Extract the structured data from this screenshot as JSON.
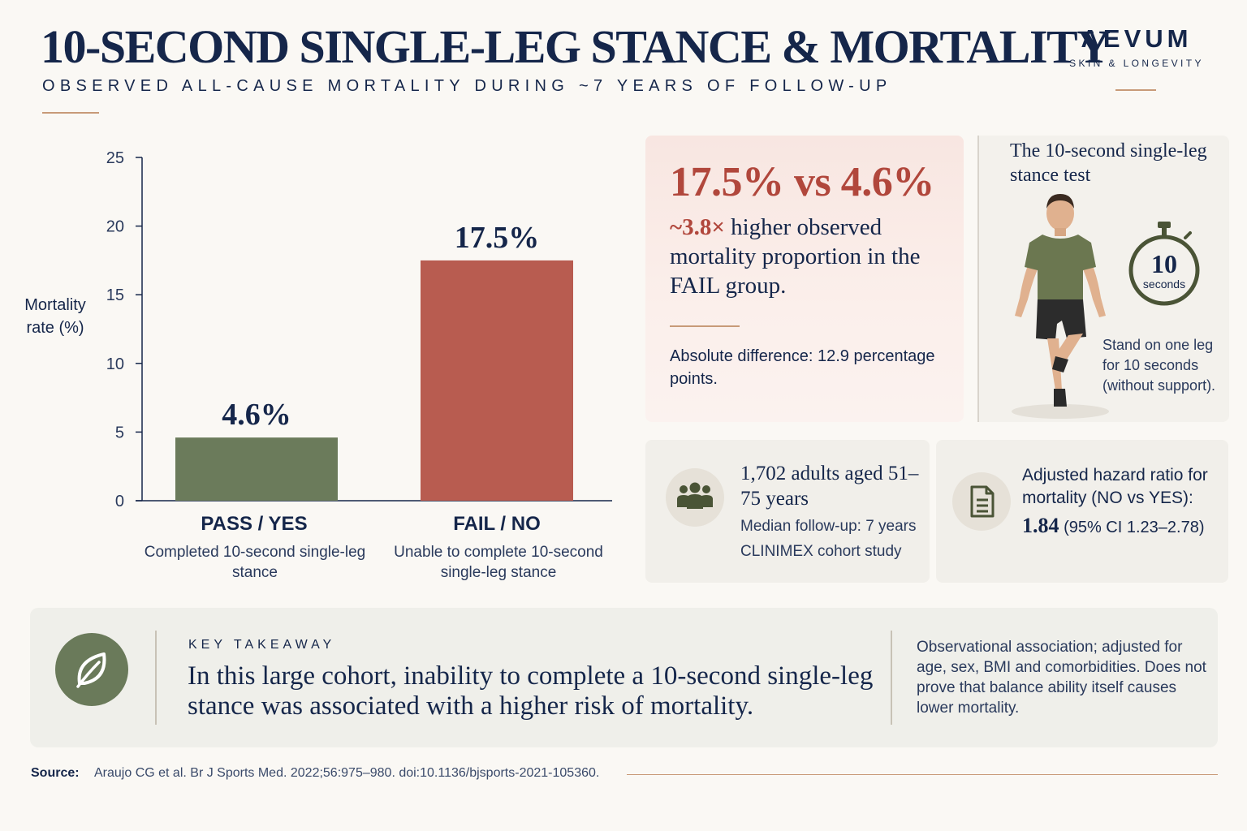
{
  "header": {
    "title": "10-SECOND SINGLE-LEG STANCE & MORTALITY",
    "subtitle": "OBSERVED ALL-CAUSE MORTALITY DURING ~7 YEARS OF FOLLOW-UP"
  },
  "brand": {
    "name": "AEVUM",
    "tagline": "SKIN & LONGEVITY"
  },
  "chart_data": {
    "type": "bar",
    "categories": [
      "PASS / YES",
      "FAIL / NO"
    ],
    "category_descriptions": [
      "Completed 10-second single-leg stance",
      "Unable to complete 10-second single-leg stance"
    ],
    "values": [
      4.6,
      17.5
    ],
    "data_labels": [
      "4.6%",
      "17.5%"
    ],
    "ylabel": "Mortality rate (%)",
    "ylim": [
      0,
      25
    ],
    "yticks": [
      0,
      5,
      10,
      15,
      20,
      25
    ],
    "grid": false,
    "colors": [
      "#6b7b5b",
      "#b85c50"
    ]
  },
  "stat_card": {
    "headline": "17.5% vs 4.6%",
    "ratio": "~3.8×",
    "body": " higher observed mortality proportion in the FAIL group.",
    "absolute_diff": "Absolute difference: 12.9 percentage points."
  },
  "test_card": {
    "title": "The 10-second single-leg stance test",
    "timer_value": "10",
    "timer_unit": "seconds",
    "description": "Stand on one leg for 10 seconds (without support)."
  },
  "cohort_card": {
    "icon": "people-group-icon",
    "main": "1,702 adults aged 51–75 years",
    "follow_up": "Median follow-up: 7 years",
    "study": "CLINIMEX cohort study"
  },
  "hr_card": {
    "icon": "document-icon",
    "label": "Adjusted hazard ratio for mortality (NO vs YES):",
    "value": "1.84",
    "ci": "(95% CI 1.23–2.78)"
  },
  "takeaway": {
    "icon": "leaf-icon",
    "label": "KEY TAKEAWAY",
    "text": "In this large cohort, inability to complete a 10-second single-leg stance was associated with a higher risk of mortality.",
    "note": "Observational association; adjusted for age, sex, BMI and comorbidities. Does not prove that balance ability itself causes lower mortality."
  },
  "source": {
    "label": "Source:",
    "text": "Araujo CG et al. Br J Sports Med. 2022;56:975–980. doi:10.1136/bjsports-2021-105360."
  }
}
